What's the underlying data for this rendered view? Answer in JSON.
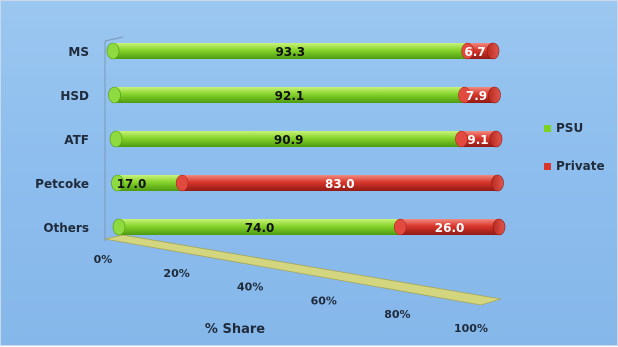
{
  "chart_data": {
    "type": "bar",
    "orientation": "horizontal",
    "stacked": true,
    "percent_stacked": true,
    "style": "3d-cylinder",
    "categories": [
      "MS",
      "HSD",
      "ATF",
      "Petcoke",
      "Others"
    ],
    "series": [
      {
        "name": "PSU",
        "values": [
          93.3,
          92.1,
          90.9,
          17.0,
          74.0
        ],
        "color": "#7ed321"
      },
      {
        "name": "Private",
        "values": [
          6.7,
          7.9,
          9.1,
          83.0,
          26.0
        ],
        "color": "#d9362b"
      }
    ],
    "data_labels": [
      [
        "93.3",
        "92.1",
        "90.9",
        "17.0",
        "74.0"
      ],
      [
        "6.7",
        "7.9",
        "9.1",
        "83.0",
        "26.0"
      ]
    ],
    "xlabel": "% Share",
    "xlim": [
      0,
      100
    ],
    "xticks": [
      "0%",
      "20%",
      "40%",
      "60%",
      "80%",
      "100%"
    ],
    "legend_position": "right",
    "grid": false,
    "colors": {
      "background": "#8ebeee",
      "floor": "#d8d77a"
    }
  }
}
